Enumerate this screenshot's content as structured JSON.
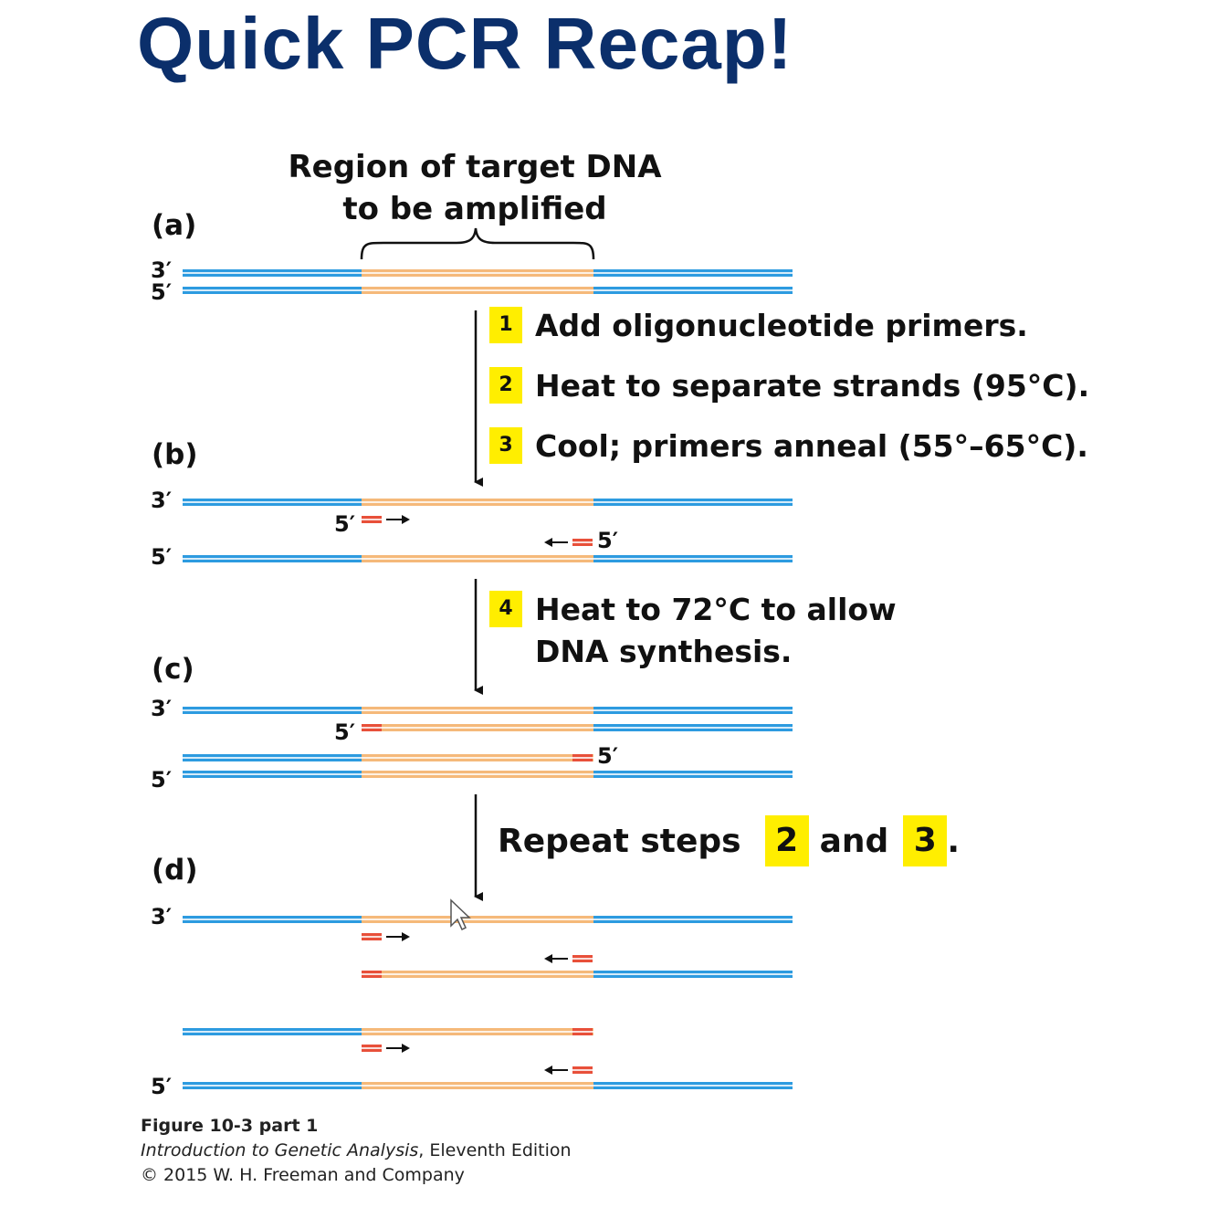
{
  "title": "Quick PCR Recap!",
  "region_label": [
    "Region of target DNA",
    "to be amplified"
  ],
  "panels": {
    "a": "(a)",
    "b": "(b)",
    "c": "(c)",
    "d": "(d)"
  },
  "ends": {
    "three_prime": "3′",
    "five_prime": "5′"
  },
  "steps": [
    {
      "num": "1",
      "text": "Add oligonucleotide primers."
    },
    {
      "num": "2",
      "text": "Heat to separate strands (95°C)."
    },
    {
      "num": "3",
      "text": "Cool; primers anneal (55°–65°C)."
    },
    {
      "num": "4",
      "text": "Heat to 72°C to allow",
      "text2": "DNA synthesis."
    }
  ],
  "repeat": {
    "prefix": "Repeat steps",
    "num_a": "2",
    "middle": "and",
    "num_b": "3",
    "suffix": "."
  },
  "caption": {
    "figure": "Figure 10-3 part 1",
    "book_title": "Introduction to Genetic Analysis",
    "book_edition": ", Eleventh Edition",
    "copyright": "© 2015 W. H. Freeman and Company"
  },
  "colors": {
    "title": "#0b2f6b",
    "flank_strand": "#2d9be0",
    "target_strand": "#f5b97a",
    "primer": "#e8503a",
    "badge": "#ffee00"
  },
  "icons": [
    "mouse-cursor-icon"
  ]
}
